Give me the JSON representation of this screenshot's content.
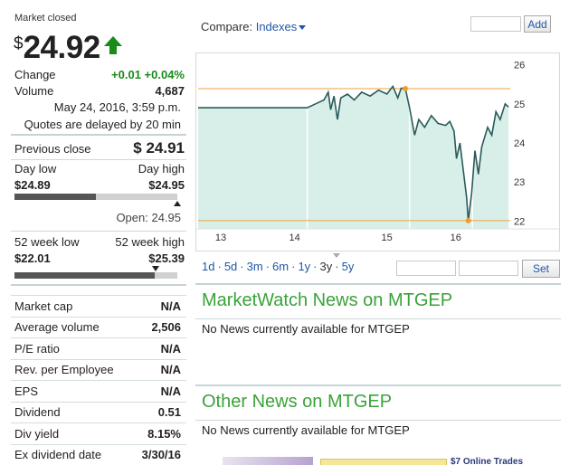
{
  "quote": {
    "status": "Market closed",
    "currency": "$",
    "price": "24.92",
    "change_label": "Change",
    "change_value": "+0.01 +0.04%",
    "volume_label": "Volume",
    "volume_value": "4,687",
    "timestamp": "May 24, 2016, 3:59 p.m.",
    "delay_note": "Quotes are delayed by 20 min",
    "prev_close_label": "Previous close",
    "prev_close_value": "$ 24.91",
    "day_low_label": "Day low",
    "day_high_label": "Day high",
    "day_low_value": "$24.89",
    "day_high_value": "$24.95",
    "day_range_fraction": 0.5,
    "open_text": "Open: 24.95",
    "wk52_low_label": "52 week low",
    "wk52_high_label": "52 week high",
    "wk52_low_value": "$22.01",
    "wk52_high_value": "$25.39",
    "wk52_range_fraction": 0.86
  },
  "stats": [
    {
      "label": "Market cap",
      "value": "N/A"
    },
    {
      "label": "Average volume",
      "value": "2,506"
    },
    {
      "label": "P/E ratio",
      "value": "N/A"
    },
    {
      "label": "Rev. per Employee",
      "value": "N/A"
    },
    {
      "label": "EPS",
      "value": "N/A"
    },
    {
      "label": "Dividend",
      "value": "0.51"
    },
    {
      "label": "Div yield",
      "value": "8.15%"
    },
    {
      "label": "Ex dividend date",
      "value": "3/30/16"
    }
  ],
  "compare": {
    "label": "Compare:",
    "dropdown": "Indexes",
    "add_button": "Add",
    "add_placeholder": ""
  },
  "ranges": {
    "items": [
      "1d",
      "5d",
      "3m",
      "6m",
      "1y",
      "3y",
      "5y"
    ],
    "selected": "3y",
    "set_button": "Set"
  },
  "news": {
    "mw_title": "MarketWatch News on MTGEP",
    "mw_empty": "No News currently available for MTGEP",
    "other_title": "Other News on MTGEP",
    "other_empty": "No News currently available for MTGEP"
  },
  "ad": {
    "text": "$7 Online Trades"
  },
  "colors": {
    "green": "#1a8a1a",
    "link": "#1f57a8",
    "news_title": "#3aa23a",
    "chart_fill": "#d8efe9",
    "chart_line": "#2a5a5a",
    "hi_lo_line": "#f0a040"
  },
  "chart_data": {
    "type": "area",
    "x_ticks": [
      "13",
      "14",
      "15",
      "16"
    ],
    "y_ticks": [
      26,
      25,
      24,
      23,
      22
    ],
    "ylim": [
      21.8,
      26.2
    ],
    "high_line": 25.39,
    "low_line": 22.01,
    "grid": false,
    "points": [
      [
        0.0,
        24.9
      ],
      [
        1.3,
        24.9
      ],
      [
        1.4,
        25.0
      ],
      [
        1.5,
        25.1
      ],
      [
        1.55,
        25.3
      ],
      [
        1.58,
        24.85
      ],
      [
        1.62,
        25.2
      ],
      [
        1.66,
        24.6
      ],
      [
        1.7,
        25.15
      ],
      [
        1.78,
        25.25
      ],
      [
        1.86,
        25.1
      ],
      [
        1.95,
        25.3
      ],
      [
        2.05,
        25.2
      ],
      [
        2.15,
        25.35
      ],
      [
        2.25,
        25.25
      ],
      [
        2.32,
        25.45
      ],
      [
        2.38,
        25.15
      ],
      [
        2.42,
        25.4
      ],
      [
        2.47,
        25.39
      ],
      [
        2.52,
        24.9
      ],
      [
        2.58,
        24.2
      ],
      [
        2.63,
        24.6
      ],
      [
        2.7,
        24.4
      ],
      [
        2.78,
        24.7
      ],
      [
        2.86,
        24.5
      ],
      [
        2.95,
        24.45
      ],
      [
        3.0,
        24.55
      ],
      [
        3.05,
        24.3
      ],
      [
        3.08,
        23.6
      ],
      [
        3.12,
        24.0
      ],
      [
        3.16,
        23.3
      ],
      [
        3.2,
        22.6
      ],
      [
        3.22,
        22.01
      ],
      [
        3.26,
        22.7
      ],
      [
        3.3,
        23.8
      ],
      [
        3.34,
        23.2
      ],
      [
        3.38,
        23.9
      ],
      [
        3.45,
        24.4
      ],
      [
        3.5,
        24.2
      ],
      [
        3.55,
        24.8
      ],
      [
        3.6,
        24.6
      ],
      [
        3.66,
        25.0
      ],
      [
        3.7,
        24.92
      ]
    ]
  }
}
